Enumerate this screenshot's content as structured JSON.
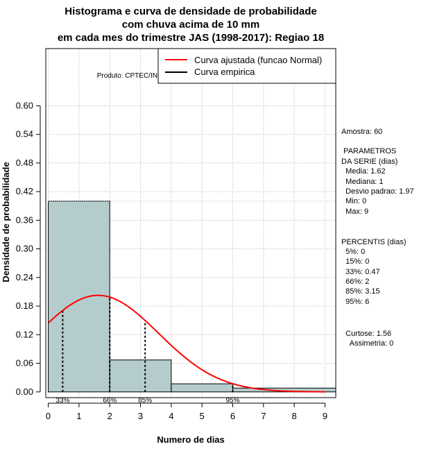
{
  "chart_data": {
    "type": "bar",
    "title_lines": [
      "Histograma e curva de densidade de probabilidade",
      "com chuva acima de 10 mm",
      "em cada mes do trimestre JAS (1998-2017): Regiao 18"
    ],
    "xlabel": "Numero de dias",
    "ylabel": "Densidade de probabilidade",
    "xlim": [
      -0.08,
      9.35
    ],
    "ylim": [
      -0.012,
      0.72
    ],
    "x_ticks": [
      0,
      1,
      2,
      3,
      4,
      5,
      6,
      7,
      8,
      9
    ],
    "y_ticks": [
      0.0,
      0.06,
      0.12,
      0.18,
      0.24,
      0.3,
      0.36,
      0.42,
      0.48,
      0.54,
      0.6
    ],
    "y_tick_labels": [
      "0.00",
      "0.06",
      "0.12",
      "0.18",
      "0.24",
      "0.30",
      "0.36",
      "0.42",
      "0.48",
      "0.54",
      "0.60"
    ],
    "bars": [
      {
        "x0": 0,
        "x1": 2,
        "density": 0.4
      },
      {
        "x0": 2,
        "x1": 4,
        "density": 0.067
      },
      {
        "x0": 4,
        "x1": 6,
        "density": 0.017
      },
      {
        "x0": 6,
        "x1": 10,
        "density": 0.008
      }
    ],
    "normal_fit": {
      "mean": 1.62,
      "sd": 1.97,
      "x_from": 0,
      "x_to": 9
    },
    "reference_line_y": 0.4,
    "percentile_lines": [
      {
        "x": 0.47,
        "label": "33%"
      },
      {
        "x": 2,
        "label": "66%"
      },
      {
        "x": 3.15,
        "label": "85%"
      },
      {
        "x": 6,
        "label": "95%"
      }
    ],
    "legend": [
      {
        "label": "Curva ajustada (funcao Normal)",
        "color": "#ff0000"
      },
      {
        "label": "Curva empirica",
        "color": "#000000"
      }
    ],
    "legend_position": "top-right",
    "product_label": "Produto: CPTEC/INPE",
    "colors": {
      "bar_fill": "#b4cccc",
      "curve": "#ff0000",
      "grid": "#b0b0b0"
    }
  },
  "side_panel": {
    "lines": [
      "Amostra: 60",
      " PARAMETROS",
      "DA SERIE (dias)",
      "  Media: 1.62",
      "  Mediana: 1",
      "  Desvio padrao: 1.97",
      "  Min: 0",
      "  Max: 9",
      "PERCENTIS (dias)",
      "  5%: 0",
      "  15%: 0",
      "  33%: 0.47",
      "  66%: 2",
      "  85%: 3.15",
      "  95%: 6",
      "  Curtose: 1.56",
      "    Assimetria: 0"
    ]
  }
}
